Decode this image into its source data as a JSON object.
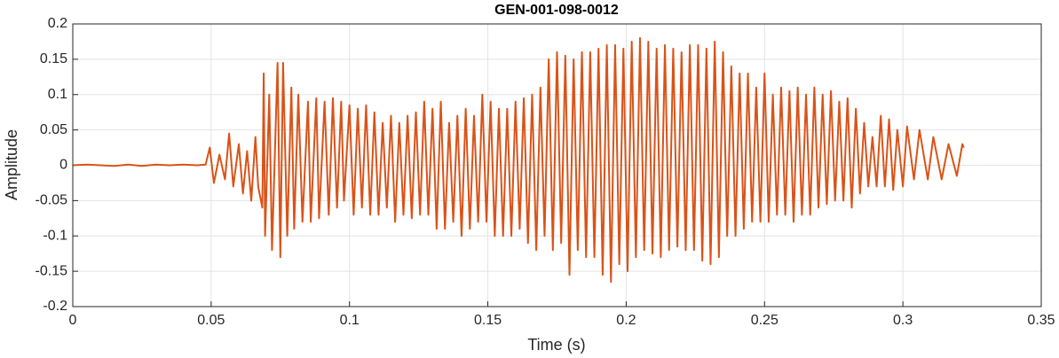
{
  "chart_data": {
    "type": "line",
    "title": "GEN-001-098-0012",
    "x_label": "Time (s)",
    "y_label": "Amplitude",
    "color": "#D95319",
    "grid": true,
    "xlim": [
      0,
      0.35
    ],
    "xticks": [
      0,
      0.05,
      0.1,
      0.15,
      0.2,
      0.25,
      0.3,
      0.35
    ],
    "ylim": [
      -0.2,
      0.2
    ],
    "yticks": [
      -0.2,
      -0.15,
      -0.1,
      -0.05,
      0,
      0.05,
      0.1,
      0.15,
      0.2
    ],
    "x": [
      0,
      0.005,
      0.01,
      0.015,
      0.02,
      0.025,
      0.03,
      0.035,
      0.04,
      0.045,
      0.048,
      0.0495,
      0.051,
      0.053,
      0.055,
      0.0565,
      0.058,
      0.06,
      0.0615,
      0.063,
      0.0645,
      0.066,
      0.067,
      0.0685,
      0.069,
      0.0695,
      0.071,
      0.072,
      0.074,
      0.075,
      0.076,
      0.0775,
      0.079,
      0.08,
      0.0815,
      0.083,
      0.085,
      0.086,
      0.088,
      0.089,
      0.091,
      0.0925,
      0.094,
      0.0955,
      0.097,
      0.098,
      0.1,
      0.1015,
      0.103,
      0.1045,
      0.106,
      0.1075,
      0.109,
      0.1105,
      0.112,
      0.1135,
      0.115,
      0.1165,
      0.118,
      0.1195,
      0.121,
      0.1225,
      0.124,
      0.1255,
      0.127,
      0.1285,
      0.13,
      0.1315,
      0.133,
      0.1345,
      0.136,
      0.1375,
      0.139,
      0.1405,
      0.142,
      0.1435,
      0.145,
      0.1465,
      0.148,
      0.1495,
      0.151,
      0.1525,
      0.154,
      0.1555,
      0.157,
      0.1585,
      0.16,
      0.1615,
      0.163,
      0.1645,
      0.166,
      0.1675,
      0.169,
      0.1705,
      0.172,
      0.1735,
      0.175,
      0.1765,
      0.178,
      0.1795,
      0.181,
      0.1825,
      0.184,
      0.1855,
      0.187,
      0.1885,
      0.19,
      0.1915,
      0.193,
      0.1945,
      0.196,
      0.1975,
      0.199,
      0.2005,
      0.202,
      0.2035,
      0.205,
      0.2065,
      0.208,
      0.2095,
      0.211,
      0.2125,
      0.214,
      0.2155,
      0.217,
      0.2185,
      0.22,
      0.2215,
      0.223,
      0.2245,
      0.226,
      0.2275,
      0.229,
      0.2305,
      0.232,
      0.2335,
      0.235,
      0.2365,
      0.238,
      0.2395,
      0.241,
      0.2425,
      0.244,
      0.2455,
      0.247,
      0.2485,
      0.25,
      0.2515,
      0.253,
      0.2545,
      0.256,
      0.2575,
      0.259,
      0.2605,
      0.262,
      0.2635,
      0.265,
      0.2665,
      0.268,
      0.2695,
      0.271,
      0.2725,
      0.274,
      0.2755,
      0.277,
      0.2785,
      0.28,
      0.2815,
      0.283,
      0.2845,
      0.286,
      0.2875,
      0.289,
      0.2905,
      0.292,
      0.2935,
      0.295,
      0.2965,
      0.298,
      0.3,
      0.3015,
      0.304,
      0.306,
      0.309,
      0.311,
      0.314,
      0.3165,
      0.3195,
      0.3215,
      0.322
    ],
    "values": [
      0,
      0.001,
      0,
      -0.001,
      0.001,
      -0.001,
      0.001,
      0,
      0.001,
      0,
      0.001,
      0.025,
      -0.025,
      0.015,
      -0.02,
      0.045,
      -0.03,
      0.03,
      -0.04,
      0.02,
      -0.05,
      0.04,
      -0.03,
      -0.06,
      0.13,
      -0.1,
      0.1,
      -0.12,
      0.145,
      -0.13,
      0.145,
      -0.1,
      0.11,
      -0.09,
      0.1,
      -0.08,
      0.09,
      -0.08,
      0.095,
      -0.075,
      0.09,
      -0.07,
      0.095,
      -0.06,
      0.09,
      -0.05,
      0.085,
      -0.07,
      0.08,
      -0.06,
      0.085,
      -0.07,
      0.075,
      -0.07,
      0.06,
      -0.06,
      0.07,
      -0.08,
      0.06,
      -0.07,
      0.07,
      -0.075,
      0.075,
      -0.07,
      0.09,
      -0.07,
      0.08,
      -0.09,
      0.09,
      -0.09,
      0.06,
      -0.08,
      0.07,
      -0.1,
      0.08,
      -0.09,
      0.07,
      -0.08,
      0.1,
      -0.08,
      0.09,
      -0.1,
      0.08,
      -0.1,
      0.08,
      -0.1,
      0.09,
      -0.09,
      0.095,
      -0.11,
      0.1,
      -0.12,
      0.11,
      -0.1,
      0.15,
      -0.12,
      0.16,
      -0.11,
      0.155,
      -0.155,
      0.15,
      -0.12,
      0.16,
      -0.13,
      0.16,
      -0.13,
      0.165,
      -0.155,
      0.17,
      -0.165,
      0.17,
      -0.14,
      0.165,
      -0.15,
      0.175,
      -0.13,
      0.18,
      -0.12,
      0.175,
      -0.125,
      0.165,
      -0.13,
      0.17,
      -0.12,
      0.165,
      -0.115,
      0.16,
      -0.12,
      0.17,
      -0.12,
      0.17,
      -0.135,
      0.165,
      -0.14,
      0.175,
      -0.13,
      0.16,
      -0.1,
      0.14,
      -0.1,
      0.13,
      -0.09,
      0.13,
      -0.08,
      0.11,
      -0.08,
      0.13,
      -0.08,
      0.1,
      -0.07,
      0.11,
      -0.07,
      0.105,
      -0.08,
      0.11,
      -0.07,
      0.1,
      -0.07,
      0.11,
      -0.06,
      0.1,
      -0.055,
      0.105,
      -0.05,
      0.09,
      -0.05,
      0.095,
      -0.06,
      0.08,
      -0.04,
      0.06,
      -0.03,
      0.04,
      -0.03,
      0.07,
      -0.03,
      0.065,
      -0.035,
      0.05,
      -0.03,
      0.055,
      -0.02,
      0.05,
      -0.02,
      0.04,
      -0.02,
      0.03,
      -0.015,
      0.03,
      0.025
    ]
  }
}
